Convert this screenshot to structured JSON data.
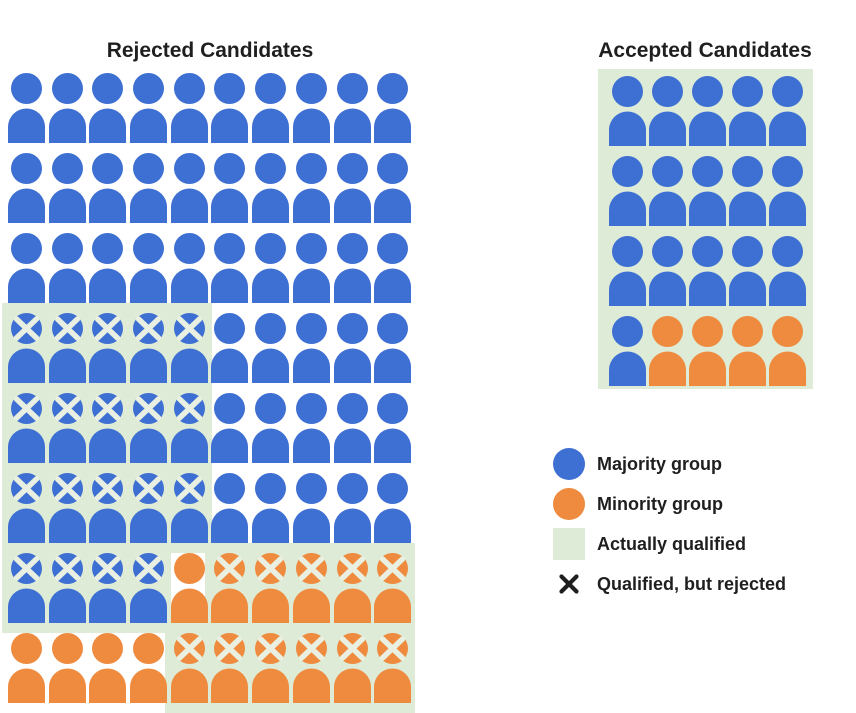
{
  "colors": {
    "majority": "#3E6FD3",
    "minority": "#EE8B3E",
    "qualified_bg": "#DEEBD7",
    "x_mark": "#E9F0E1",
    "legend_x": "#1F1F1F",
    "text": "#1F1F1F"
  },
  "legend": {
    "items": [
      {
        "swatch": "majority-circle",
        "label": "Majority group"
      },
      {
        "swatch": "minority-circle",
        "label": "Minority group"
      },
      {
        "swatch": "qualified-square",
        "label": "Actually qualified"
      },
      {
        "swatch": "rejected-x",
        "label": "Qualified, but rejected"
      }
    ]
  },
  "chart_data": {
    "type": "pictogram",
    "cell_tokens": {
      "b": "majority group person",
      "o": "minority group person",
      "B": "majority group person, actually qualified but rejected (X mark, green background)",
      "O": "minority group person, actually qualified but rejected (X mark, green background)"
    },
    "panels": [
      {
        "title": "Rejected Candidates",
        "grid_cols": 10,
        "rows": [
          "bbbbbbbbbb",
          "bbbbbbbbbb",
          "bbbbbbbbbb",
          "BBBBBbbbbb",
          "BBBBBbbbbb",
          "BBBBBbbbbb",
          "BBBBoOOOOO",
          "ooooOOOOOO"
        ],
        "counts": {
          "total": 80,
          "majority_group": 64,
          "minority_group": 16,
          "qualified_but_rejected_total": 30,
          "qualified_but_rejected_majority": 19,
          "qualified_but_rejected_minority": 11
        }
      },
      {
        "title": "Accepted Candidates",
        "grid_cols": 5,
        "all_qualified": true,
        "rows": [
          "bbbbb",
          "bbbbb",
          "bbbbb",
          "boooo"
        ],
        "counts": {
          "total": 20,
          "majority_group": 16,
          "minority_group": 4
        }
      }
    ]
  }
}
